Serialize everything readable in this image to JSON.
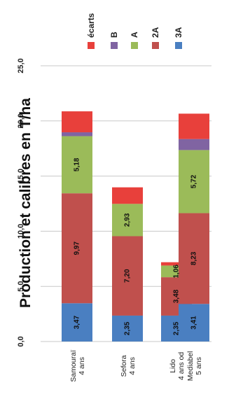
{
  "chart_data": {
    "type": "bar",
    "stacked": true,
    "orientation": "horizontal-bars, figure rotated 90° counter-clockwise",
    "title": "Production et calibres en T/ha",
    "categories": [
      {
        "line1": "Samouraï",
        "line2": "4 ans"
      },
      {
        "line1": "Sefora",
        "line2": "4 ans"
      },
      {
        "line1": "Lido",
        "line2": "4 ans od"
      },
      {
        "line1": "Mediabel",
        "line2": "5 ans"
      }
    ],
    "series": [
      {
        "name": "3A",
        "color": "#4a7fc1",
        "values": [
          3.47,
          2.35,
          2.35,
          3.41
        ],
        "labels": [
          "3,47",
          "2,35",
          "2,35",
          "3,41"
        ]
      },
      {
        "name": "2A",
        "color": "#c0504d",
        "values": [
          9.97,
          7.2,
          3.48,
          8.23
        ],
        "labels": [
          "9,97",
          "7,20",
          "3,48",
          "8,23"
        ]
      },
      {
        "name": "A",
        "color": "#9bbb59",
        "values": [
          5.18,
          2.93,
          1.06,
          5.72
        ],
        "labels": [
          "5,18",
          "2,93",
          "1,06",
          "5,72"
        ]
      },
      {
        "name": "B",
        "color": "#8064a2",
        "values": [
          0.35,
          0.0,
          0.0,
          1.0
        ],
        "labels": [
          "",
          "",
          "",
          ""
        ]
      },
      {
        "name": "écarts",
        "color": "#e8403b",
        "values": [
          1.9,
          1.5,
          0.3,
          2.3
        ],
        "labels": [
          "",
          "",
          "",
          ""
        ]
      }
    ],
    "ticks": [
      "0,0",
      "5,0",
      "10,0",
      "15,0",
      "20,0",
      "25,0"
    ],
    "tick_values": [
      0,
      5,
      10,
      15,
      20,
      25
    ],
    "ylim": [
      0,
      25
    ],
    "grid": true,
    "legend_position": "top-right",
    "legend_order": [
      "écarts",
      "B",
      "A",
      "2A",
      "3A"
    ]
  }
}
